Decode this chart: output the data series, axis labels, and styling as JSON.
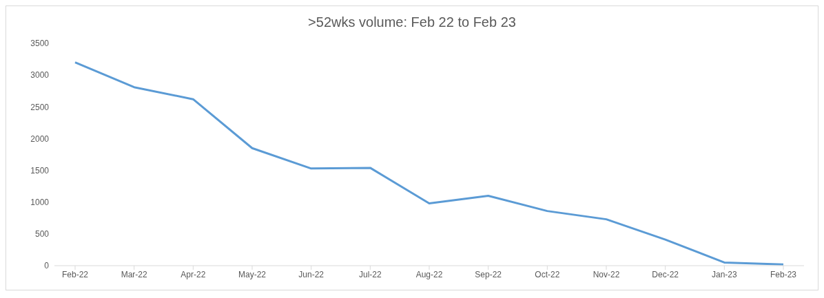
{
  "chart_data": {
    "type": "line",
    "title": ">52wks volume: Feb 22 to Feb 23",
    "categories": [
      "Feb-22",
      "Mar-22",
      "Apr-22",
      "May-22",
      "Jun-22",
      "Jul-22",
      "Aug-22",
      "Sep-22",
      "Oct-22",
      "Nov-22",
      "Dec-22",
      "Jan-23",
      "Feb-23"
    ],
    "series": [
      {
        "color": "#5b9bd5",
        "values": [
          3200,
          2810,
          2620,
          1850,
          1530,
          1540,
          980,
          1100,
          860,
          730,
          410,
          50,
          20
        ]
      }
    ],
    "ylim": [
      0,
      3500
    ],
    "yticks": [
      0,
      500,
      1000,
      1500,
      2000,
      2500,
      3000,
      3500
    ],
    "grid": false,
    "marker": "none",
    "line_style": "solid"
  }
}
